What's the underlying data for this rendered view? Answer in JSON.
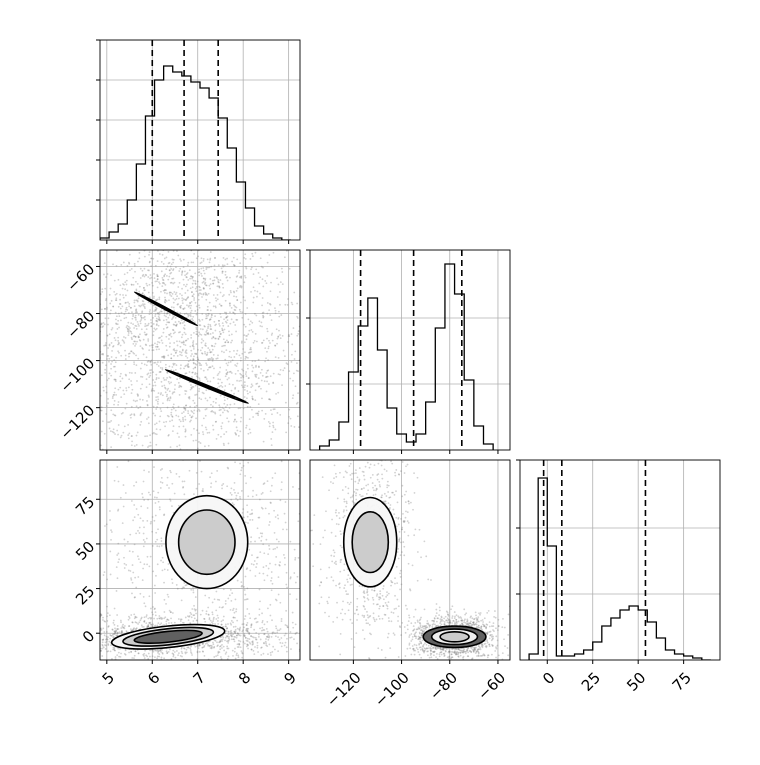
{
  "chart_data": {
    "type": "corner",
    "parameters": [
      "",
      "",
      ""
    ],
    "colors": {
      "line": "#000000",
      "grid": "#b0b0b0",
      "scatter": "#7f7f7f"
    },
    "grid": true,
    "quantile_lines": "dashed",
    "panels": [
      {
        "id": "p0_hist",
        "row": 0,
        "col": 0,
        "type": "histogram",
        "xlim": [
          4.85,
          9.25
        ],
        "ylim": [
          0,
          1.0
        ],
        "xticks": [
          5,
          6,
          7,
          8,
          9
        ],
        "yticks_unlabeled": [
          0.2,
          0.4,
          0.6,
          0.8,
          1.0
        ],
        "bins_x": [
          4.85,
          5.05,
          5.25,
          5.45,
          5.65,
          5.85,
          6.05,
          6.25,
          6.45,
          6.65,
          6.85,
          7.05,
          7.25,
          7.45,
          7.65,
          7.85,
          8.05,
          8.25,
          8.45,
          8.65,
          8.85,
          9.05
        ],
        "values": [
          0.01,
          0.04,
          0.08,
          0.2,
          0.38,
          0.62,
          0.8,
          0.87,
          0.84,
          0.82,
          0.79,
          0.76,
          0.71,
          0.61,
          0.46,
          0.29,
          0.16,
          0.07,
          0.03,
          0.01,
          0.0
        ],
        "quantiles": [
          6.0,
          6.7,
          7.45
        ]
      },
      {
        "id": "p1_hist",
        "row": 1,
        "col": 1,
        "type": "histogram",
        "xlim": [
          -138,
          -55
        ],
        "ylim": [
          0,
          1.0
        ],
        "xticks": [
          -120,
          -100,
          -80,
          -60
        ],
        "yticks_unlabeled": [
          0.33,
          0.66,
          1.0
        ],
        "bins_x": [
          -134,
          -130,
          -126,
          -122,
          -118,
          -114,
          -110,
          -106,
          -102,
          -98,
          -94,
          -90,
          -86,
          -82,
          -78,
          -74,
          -70,
          -66,
          -62
        ],
        "values": [
          0.02,
          0.05,
          0.14,
          0.39,
          0.62,
          0.76,
          0.5,
          0.21,
          0.08,
          0.04,
          0.08,
          0.24,
          0.61,
          0.93,
          0.78,
          0.35,
          0.12,
          0.03
        ],
        "quantiles": [
          -117,
          -95,
          -75
        ]
      },
      {
        "id": "p2_hist",
        "row": 2,
        "col": 2,
        "type": "histogram",
        "xlim": [
          -15,
          95
        ],
        "ylim": [
          0,
          1.0
        ],
        "xticks": [
          0,
          25,
          50,
          75
        ],
        "yticks_unlabeled": [
          0.33,
          0.66,
          1.0
        ],
        "bins_x": [
          -10,
          -5,
          0,
          5,
          10,
          15,
          20,
          25,
          30,
          35,
          40,
          45,
          50,
          55,
          60,
          65,
          70,
          75,
          80,
          85,
          90
        ],
        "values": [
          0.03,
          0.91,
          0.57,
          0.02,
          0.02,
          0.03,
          0.05,
          0.09,
          0.17,
          0.21,
          0.25,
          0.27,
          0.25,
          0.19,
          0.11,
          0.05,
          0.03,
          0.02,
          0.01,
          0.0
        ],
        "quantiles": [
          -2,
          8,
          54
        ]
      },
      {
        "id": "p10",
        "row": 1,
        "col": 0,
        "type": "2d",
        "xlim": [
          4.85,
          9.25
        ],
        "ylim": [
          -138,
          -53
        ],
        "yticks": [
          -120,
          -100,
          -80,
          -60
        ],
        "blobs": [
          {
            "cx": 6.3,
            "cy": -78,
            "rx": 0.75,
            "ry": 9,
            "angle": -28,
            "weight": 1.0
          },
          {
            "cx": 7.2,
            "cy": -111,
            "rx": 0.95,
            "ry": 10,
            "angle": -22,
            "weight": 0.8
          }
        ],
        "contours": [
          {
            "cx": 6.3,
            "cy": -78,
            "rx": 0.78,
            "ry": 0.42,
            "angle": 28
          },
          {
            "cx": 6.3,
            "cy": -78,
            "rx": 0.55,
            "ry": 0.28,
            "angle": 28
          },
          {
            "cx": 6.28,
            "cy": -77.5,
            "rx": 0.25,
            "ry": 0.14,
            "angle": 28
          },
          {
            "cx": 7.2,
            "cy": -111,
            "rx": 0.98,
            "ry": 0.52,
            "angle": 22
          },
          {
            "cx": 7.2,
            "cy": -111,
            "rx": 0.65,
            "ry": 0.34,
            "angle": 22
          },
          {
            "cx": 7.15,
            "cy": -110.5,
            "rx": 0.32,
            "ry": 0.16,
            "angle": 22
          }
        ]
      },
      {
        "id": "p20",
        "row": 2,
        "col": 0,
        "type": "2d",
        "xlim": [
          4.85,
          9.25
        ],
        "ylim": [
          -15,
          97
        ],
        "yticks": [
          0,
          25,
          50,
          75
        ],
        "blobs": [
          {
            "cx": 6.35,
            "cy": -2,
            "rx": 0.85,
            "ry": 3.5,
            "angle": 0,
            "weight": 1.0
          },
          {
            "cx": 7.2,
            "cy": 51,
            "rx": 0.75,
            "ry": 17,
            "angle": 0,
            "weight": 0.6
          }
        ],
        "contours": [
          {
            "cx": 6.35,
            "cy": -2,
            "rx": 1.25,
            "ry": 6,
            "angle": 0,
            "pxrot": -6
          },
          {
            "cx": 6.35,
            "cy": -2,
            "rx": 1.0,
            "ry": 4.5,
            "angle": 0,
            "pxrot": -6
          },
          {
            "cx": 6.35,
            "cy": -2,
            "rx": 0.75,
            "ry": 3,
            "angle": 0,
            "pxrot": -6
          },
          {
            "cx": 7.2,
            "cy": 51,
            "rx": 0.9,
            "ry": 26,
            "angle": 0,
            "pxrot": 0
          },
          {
            "cx": 7.2,
            "cy": 51,
            "rx": 0.62,
            "ry": 18,
            "angle": 0,
            "pxrot": 0
          }
        ]
      },
      {
        "id": "p21",
        "row": 2,
        "col": 1,
        "type": "2d",
        "xlim": [
          -138,
          -55
        ],
        "ylim": [
          -15,
          97
        ],
        "yticks": [],
        "blobs": [
          {
            "cx": -113,
            "cy": 51,
            "rx": 5,
            "ry": 17,
            "angle": 0,
            "weight": 0.6
          },
          {
            "cx": -78,
            "cy": -2,
            "rx": 5,
            "ry": 3.5,
            "angle": 0,
            "weight": 1.0
          }
        ],
        "contours": [
          {
            "cx": -113,
            "cy": 51,
            "rx": 11,
            "ry": 25,
            "angle": 0,
            "pxrot": 0
          },
          {
            "cx": -113,
            "cy": 51,
            "rx": 7.5,
            "ry": 17,
            "angle": 0,
            "pxrot": 0
          },
          {
            "cx": -78,
            "cy": -2,
            "rx": 13,
            "ry": 6,
            "angle": 0,
            "pxrot": 0
          },
          {
            "cx": -78,
            "cy": -2,
            "rx": 9.5,
            "ry": 4.3,
            "angle": 0,
            "pxrot": 0
          },
          {
            "cx": -78,
            "cy": -2,
            "rx": 6,
            "ry": 2.8,
            "angle": 0,
            "pxrot": 0
          }
        ]
      }
    ]
  }
}
